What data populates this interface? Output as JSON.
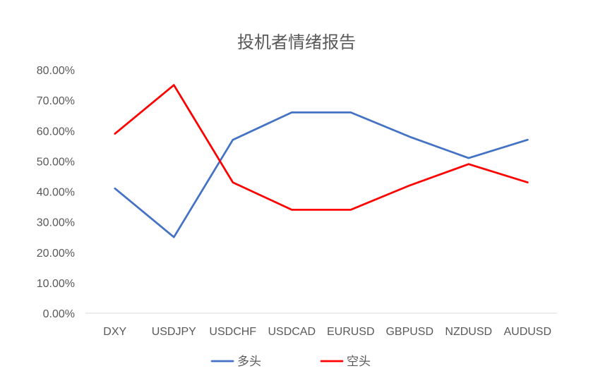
{
  "chart_data": {
    "type": "line",
    "title": "投机者情绪报告",
    "xlabel": "",
    "ylabel": "",
    "categories": [
      "DXY",
      "USDJPY",
      "USDCHF",
      "USDCAD",
      "EURUSD",
      "GBPUSD",
      "NZDUSD",
      "AUDUSD"
    ],
    "series": [
      {
        "name": "多头",
        "color": "#4472C4",
        "values": [
          41,
          25,
          57,
          66,
          66,
          58,
          51,
          57
        ]
      },
      {
        "name": "空头",
        "color": "#FF0000",
        "values": [
          59,
          75,
          43,
          34,
          34,
          42,
          49,
          43
        ]
      }
    ],
    "ylim": [
      0,
      80
    ],
    "yticks": [
      0,
      10,
      20,
      30,
      40,
      50,
      60,
      70,
      80
    ],
    "ytick_labels": [
      "0.00%",
      "10.00%",
      "20.00%",
      "30.00%",
      "40.00%",
      "50.00%",
      "60.00%",
      "70.00%",
      "80.00%"
    ],
    "grid": false,
    "legend_position": "bottom"
  },
  "colors": {
    "axis_line": "#D9D9D9",
    "text": "#595959"
  }
}
